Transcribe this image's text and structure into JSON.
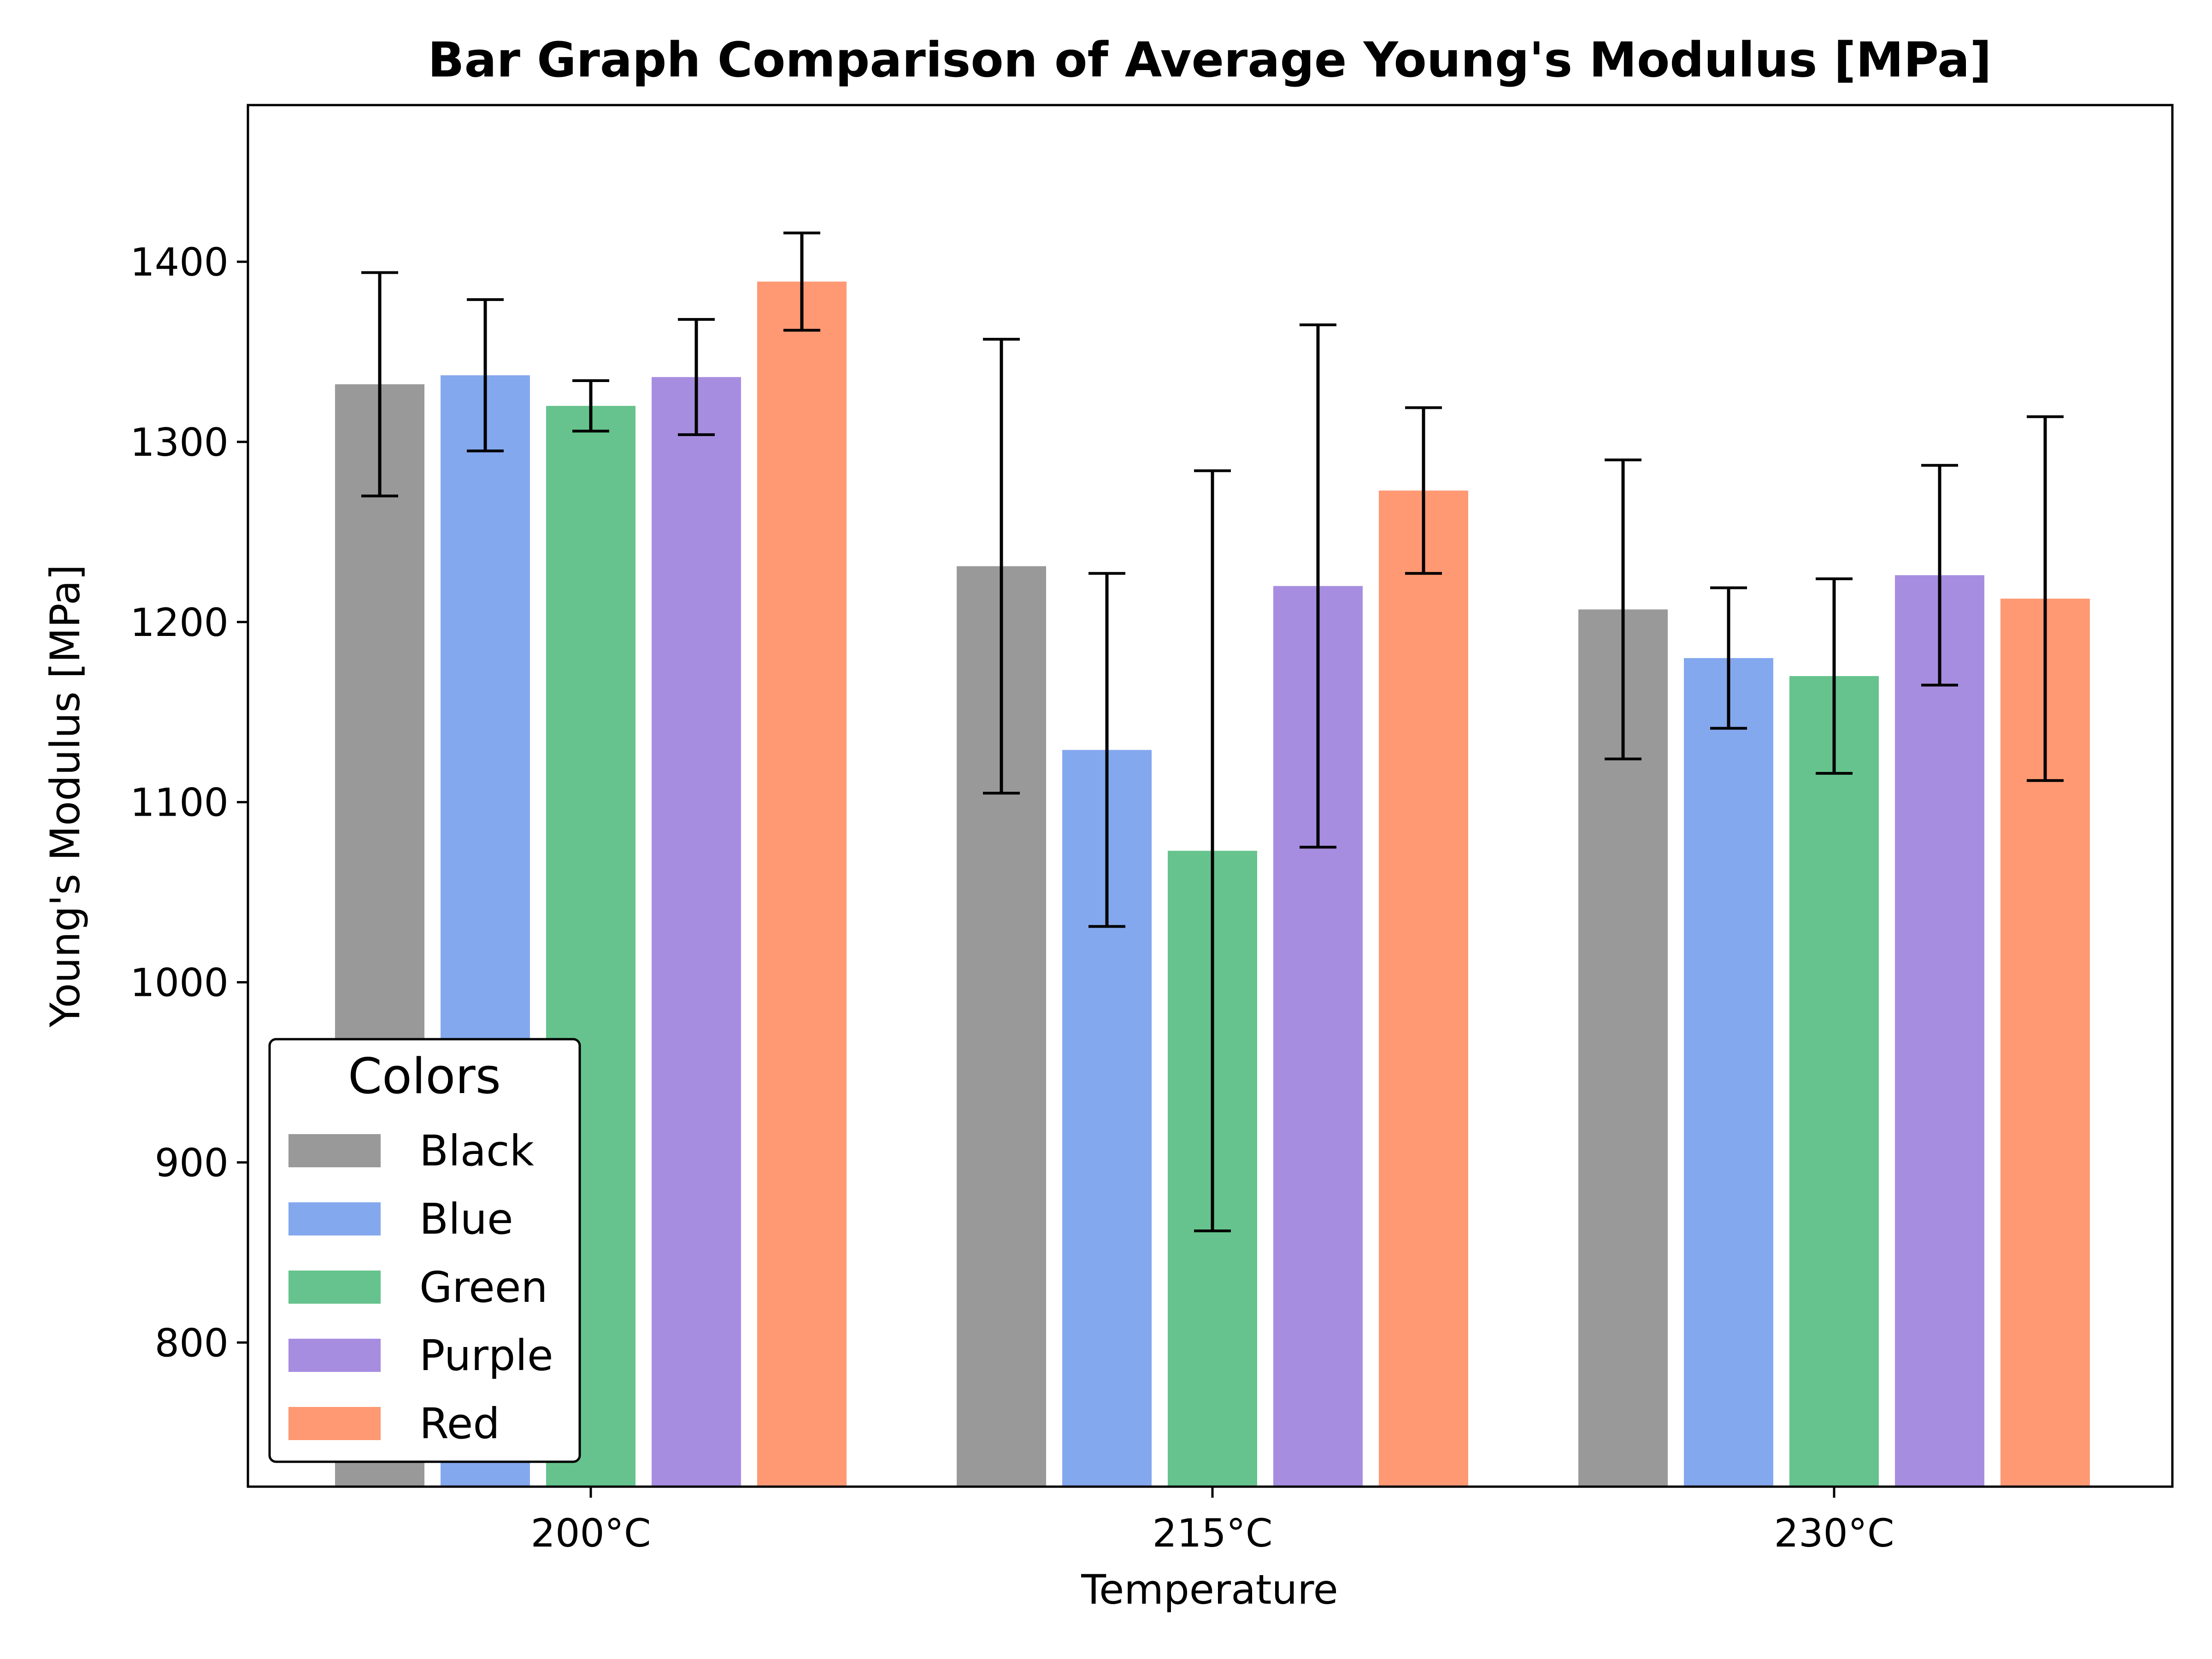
{
  "chart_data": {
    "type": "bar",
    "title": "Bar Graph Comparison of Average Young's Modulus [MPa]",
    "xlabel": "Temperature",
    "ylabel": "Young's Modulus [MPa]",
    "categories": [
      "200°C",
      "215°C",
      "230°C"
    ],
    "ylim": [
      720,
      1487
    ],
    "yticks": [
      800,
      900,
      1000,
      1100,
      1200,
      1300,
      1400
    ],
    "grid": false,
    "legend": {
      "title": "Colors",
      "placement": "lower-left"
    },
    "series": [
      {
        "name": "Black",
        "color": "#999999",
        "values": [
          1332,
          1231,
          1207
        ],
        "errors": [
          62,
          126,
          83
        ]
      },
      {
        "name": "Blue",
        "color": "#84a8ee",
        "values": [
          1337,
          1129,
          1180
        ],
        "errors": [
          42,
          98,
          39
        ]
      },
      {
        "name": "Green",
        "color": "#66c38d",
        "values": [
          1320,
          1073,
          1170
        ],
        "errors": [
          14,
          211,
          54
        ]
      },
      {
        "name": "Purple",
        "color": "#a78de0",
        "values": [
          1336,
          1220,
          1226
        ],
        "errors": [
          32,
          145,
          61
        ]
      },
      {
        "name": "Red",
        "color": "#fe9973",
        "values": [
          1389,
          1273,
          1213
        ],
        "errors": [
          27,
          46,
          101
        ]
      }
    ]
  }
}
